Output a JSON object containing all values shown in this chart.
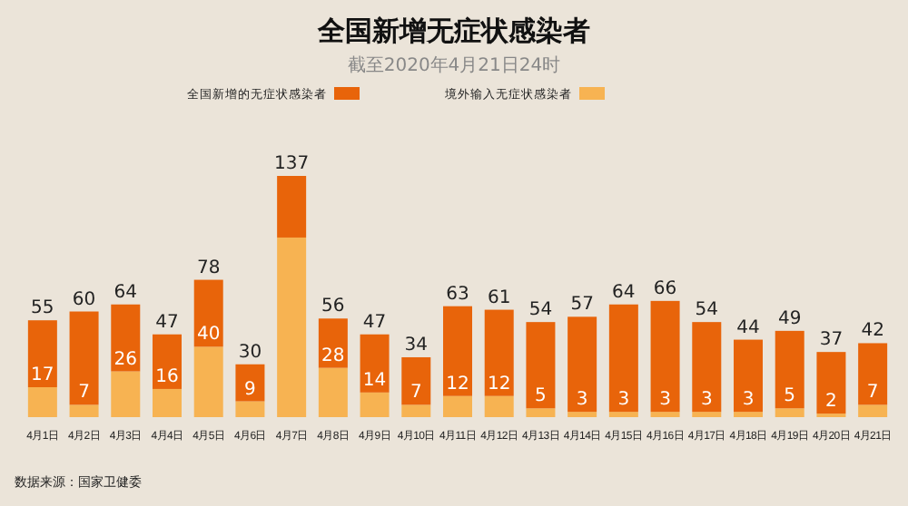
{
  "chart_data": {
    "type": "bar",
    "title": "全国新增无症状感染者",
    "subtitle": "截至2020年4月21日24时",
    "categories": [
      "4月1日",
      "4月2日",
      "4月3日",
      "4月4日",
      "4月5日",
      "4月6日",
      "4月7日",
      "4月8日",
      "4月9日",
      "4月10日",
      "4月11日",
      "4月12日",
      "4月13日",
      "4月14日",
      "4月15日",
      "4月16日",
      "4月17日",
      "4月18日",
      "4月19日",
      "4月20日",
      "4月21日"
    ],
    "stacked": true,
    "series": [
      {
        "name": "境外输入无症状感染者",
        "color": "#f7b352",
        "values": [
          17,
          7,
          26,
          16,
          40,
          9,
          102,
          28,
          14,
          7,
          12,
          12,
          5,
          3,
          3,
          3,
          3,
          3,
          5,
          2,
          7
        ],
        "value_labels": [
          "17",
          "7",
          "26",
          "16",
          "40",
          "9",
          null,
          "28",
          "14",
          "7",
          "12",
          "12",
          "5",
          "3",
          "3",
          "3",
          "3",
          "3",
          "5",
          "2",
          "7"
        ]
      },
      {
        "name": "全国新增的无症状感染者",
        "color": "#e8640a",
        "values": [
          38,
          53,
          38,
          31,
          38,
          21,
          35,
          28,
          33,
          27,
          51,
          49,
          49,
          54,
          61,
          63,
          51,
          41,
          44,
          35,
          35
        ]
      }
    ],
    "totals": [
      "55",
      "60",
      "64",
      "47",
      "78",
      "30",
      "137",
      "56",
      "47",
      "34",
      "63",
      "61",
      "54",
      "57",
      "64",
      "66",
      "54",
      "44",
      "49",
      "37",
      "42"
    ],
    "legend": "top",
    "annotations": [
      "数据来源：国家卫健委"
    ]
  }
}
